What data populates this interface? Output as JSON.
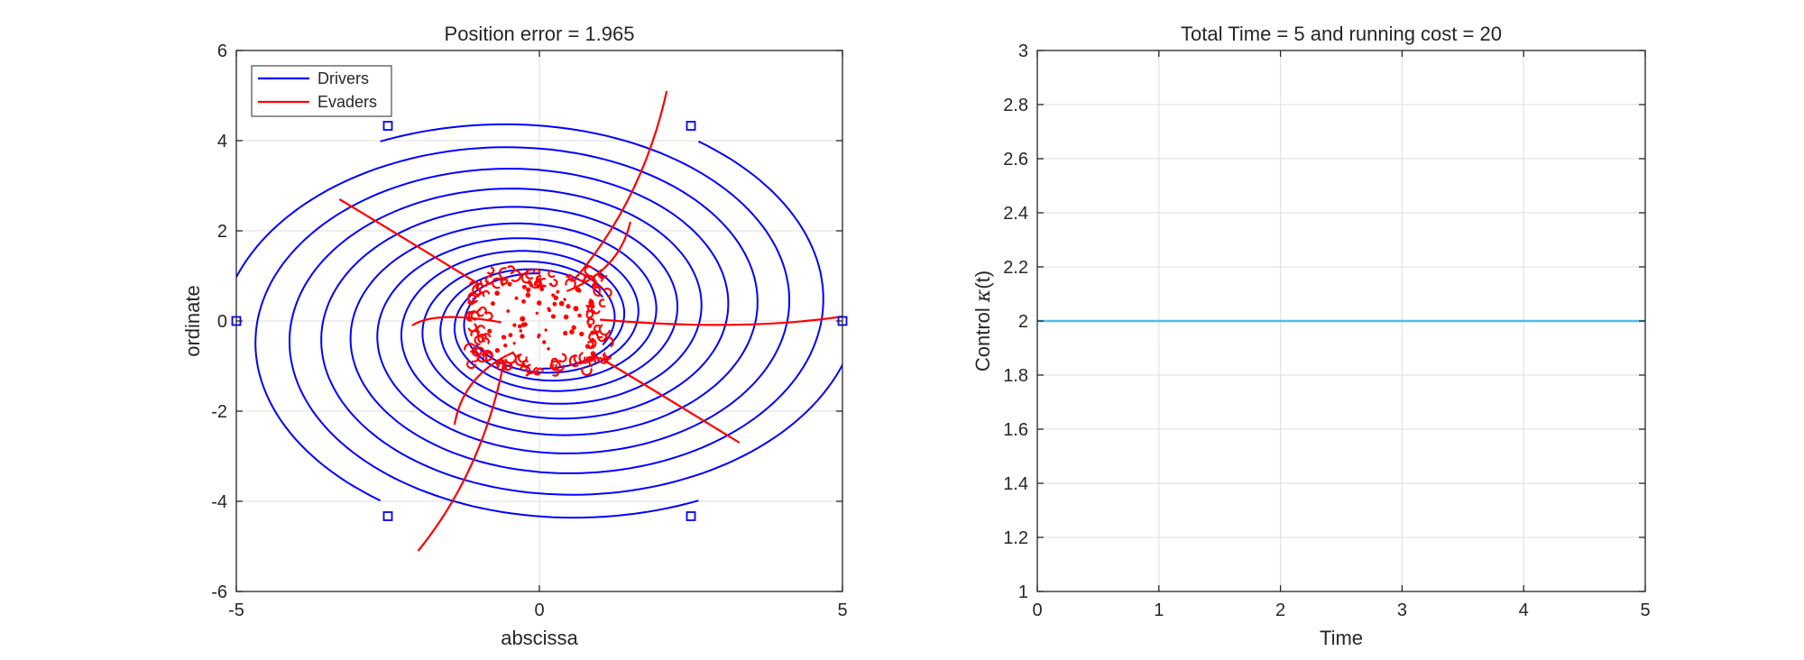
{
  "chart_data": [
    {
      "type": "line",
      "title": "Position error = 1.965",
      "xlabel": "abscissa",
      "ylabel": "ordinate",
      "xlim": [
        -5,
        5
      ],
      "ylim": [
        -6,
        6
      ],
      "xticks": [
        -5,
        0,
        5
      ],
      "yticks": [
        -6,
        -4,
        -2,
        0,
        2,
        4,
        6
      ],
      "xtick_labels": [
        "-5",
        "0",
        "5"
      ],
      "ytick_labels": [
        "-6",
        "-4",
        "-2",
        "0",
        "2",
        "4",
        "6"
      ],
      "grid": true,
      "legend": {
        "placement": "top-left",
        "entries": [
          "Drivers",
          "Evaders"
        ]
      },
      "colors": {
        "Drivers": "#0000ff",
        "Evaders": "#ff0000"
      },
      "driver_starts": [
        [
          -5,
          0
        ],
        [
          5,
          0
        ],
        [
          -2.5,
          4.33
        ],
        [
          2.5,
          4.33
        ],
        [
          -2.5,
          -4.33
        ],
        [
          2.5,
          -4.33
        ]
      ],
      "evader_starts": [
        [
          -3.3,
          2.7
        ],
        [
          2.1,
          5.1
        ],
        [
          3.3,
          -2.7
        ],
        [
          -2.0,
          -5.1
        ],
        [
          -2.1,
          -0.1
        ],
        [
          1.5,
          2.2
        ],
        [
          -1.4,
          -2.3
        ],
        [
          5.0,
          0.1
        ]
      ],
      "evader_cluster": {
        "x_range": [
          -1.1,
          1.1
        ],
        "y_range": [
          -1.1,
          1.1
        ]
      }
    },
    {
      "type": "line",
      "title": "Total Time = 5 and running cost = 20",
      "xlabel": "Time",
      "ylabel": "Control κ(t)",
      "ylabel_parts": {
        "text": "Control ",
        "symbol": "κ",
        "arg": "(t)"
      },
      "xlim": [
        0,
        5
      ],
      "ylim": [
        1,
        3
      ],
      "xticks": [
        0,
        1,
        2,
        3,
        4,
        5
      ],
      "yticks": [
        1,
        1.2,
        1.4,
        1.6,
        1.8,
        2,
        2.2,
        2.4,
        2.6,
        2.8,
        3
      ],
      "xtick_labels": [
        "0",
        "1",
        "2",
        "3",
        "4",
        "5"
      ],
      "ytick_labels": [
        "1",
        "1.2",
        "1.4",
        "1.6",
        "1.8",
        "2",
        "2.2",
        "2.4",
        "2.6",
        "2.8",
        "3"
      ],
      "grid": true,
      "series": [
        {
          "x": [
            0,
            5
          ],
          "y": [
            2,
            2
          ],
          "color": "#4dbeee"
        }
      ]
    }
  ]
}
